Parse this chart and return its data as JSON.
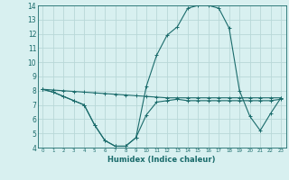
{
  "xlabel": "Humidex (Indice chaleur)",
  "bg_color": "#d8f0f0",
  "grid_color": "#b8d8d8",
  "line_color": "#1a6b6b",
  "spine_color": "#1a6b6b",
  "xlim": [
    -0.5,
    23.5
  ],
  "ylim": [
    4,
    14
  ],
  "xticks": [
    0,
    1,
    2,
    3,
    4,
    5,
    6,
    7,
    8,
    9,
    10,
    11,
    12,
    13,
    14,
    15,
    16,
    17,
    18,
    19,
    20,
    21,
    22,
    23
  ],
  "yticks": [
    4,
    5,
    6,
    7,
    8,
    9,
    10,
    11,
    12,
    13,
    14
  ],
  "x": [
    0,
    1,
    2,
    3,
    4,
    5,
    6,
    7,
    8,
    9,
    10,
    11,
    12,
    13,
    14,
    15,
    16,
    17,
    18,
    19,
    20,
    21,
    22,
    23
  ],
  "series": [
    [
      8.1,
      7.9,
      7.6,
      7.3,
      7.0,
      5.6,
      4.5,
      4.1,
      4.1,
      4.7,
      6.3,
      7.2,
      7.3,
      7.4,
      7.3,
      7.3,
      7.3,
      7.3,
      7.3,
      7.3,
      7.3,
      7.3,
      7.3,
      7.4
    ],
    [
      8.1,
      8.05,
      8.0,
      7.95,
      7.9,
      7.85,
      7.8,
      7.75,
      7.7,
      7.65,
      7.6,
      7.55,
      7.5,
      7.5,
      7.5,
      7.5,
      7.5,
      7.5,
      7.5,
      7.5,
      7.5,
      7.5,
      7.5,
      7.5
    ],
    [
      8.1,
      7.9,
      7.6,
      7.3,
      7.0,
      5.6,
      4.5,
      4.1,
      4.1,
      4.7,
      8.3,
      10.5,
      11.9,
      12.5,
      13.8,
      14.0,
      14.0,
      13.8,
      12.4,
      8.0,
      6.2,
      5.2,
      6.4,
      7.5
    ]
  ]
}
